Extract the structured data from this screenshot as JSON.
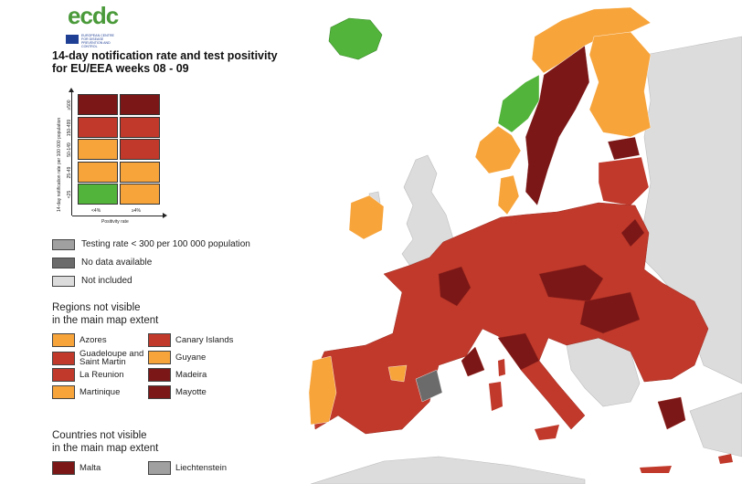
{
  "logo": {
    "text": "ecdc",
    "subtitle": "EUROPEAN CENTRE FOR DISEASE PREVENTION AND CONTROL",
    "flag_color": "#1f3f94",
    "text_color": "#4a9a3a"
  },
  "title": {
    "line1": "14-day notification rate and test positivity",
    "line2": "for EU/EEA weeks 08 - 09"
  },
  "colors": {
    "green": "#52b43a",
    "orange": "#f7a43b",
    "red": "#c0392b",
    "dark_red": "#7b1717",
    "testing": "#a0a0a0",
    "no_data": "#6b6b6b",
    "not_included": "#dcdcdc",
    "sea": "#ffffff"
  },
  "matrix": {
    "y_title": "14-day notification rate per 100 000 population",
    "x_title": "Positivity rate",
    "rows": [
      {
        "label": "≥500",
        "cells": [
          "dark_red",
          "dark_red"
        ]
      },
      {
        "label": "150-499",
        "cells": [
          "red",
          "red"
        ]
      },
      {
        "label": "50-149",
        "cells": [
          "orange",
          "red"
        ]
      },
      {
        "label": "25-49",
        "cells": [
          "orange",
          "orange"
        ]
      },
      {
        "label": "<25",
        "cells": [
          "green",
          "orange"
        ]
      }
    ],
    "cols": [
      "<4%",
      "≥4%"
    ]
  },
  "status_legend": [
    {
      "label": "Testing rate < 300 per 100 000 population",
      "color": "testing"
    },
    {
      "label": "No data available",
      "color": "no_data"
    },
    {
      "label": "Not included",
      "color": "not_included"
    }
  ],
  "regions": {
    "title_line1": "Regions not visible",
    "title_line2": "in the main map extent",
    "items": [
      {
        "label": "Azores",
        "color": "orange"
      },
      {
        "label": "Guadeloupe and Saint Martin",
        "color": "red"
      },
      {
        "label": "La Reunion",
        "color": "red"
      },
      {
        "label": "Martinique",
        "color": "orange"
      },
      {
        "label": "Canary Islands",
        "color": "red"
      },
      {
        "label": "Guyane",
        "color": "orange"
      },
      {
        "label": "Madeira",
        "color": "dark_red"
      },
      {
        "label": "Mayotte",
        "color": "dark_red"
      }
    ]
  },
  "countries": {
    "title_line1": "Countries not visible",
    "title_line2": "in the main map extent",
    "items": [
      {
        "label": "Malta",
        "color": "dark_red"
      },
      {
        "label": "Liechtenstein",
        "color": "testing"
      }
    ]
  }
}
